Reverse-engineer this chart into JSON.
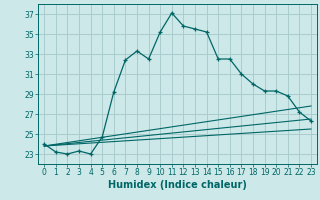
{
  "title": "",
  "xlabel": "Humidex (Indice chaleur)",
  "bg_color": "#cce8e8",
  "grid_color": "#aacccc",
  "line_color": "#006666",
  "xlim": [
    -0.5,
    23.5
  ],
  "ylim": [
    22,
    38
  ],
  "yticks": [
    23,
    25,
    27,
    29,
    31,
    33,
    35,
    37
  ],
  "xticks": [
    0,
    1,
    2,
    3,
    4,
    5,
    6,
    7,
    8,
    9,
    10,
    11,
    12,
    13,
    14,
    15,
    16,
    17,
    18,
    19,
    20,
    21,
    22,
    23
  ],
  "main_line": {
    "x": [
      0,
      1,
      2,
      3,
      4,
      5,
      6,
      7,
      8,
      9,
      10,
      11,
      12,
      13,
      14,
      15,
      16,
      17,
      18,
      19,
      20,
      21,
      22,
      23
    ],
    "y": [
      24.0,
      23.2,
      23.0,
      23.3,
      23.0,
      24.7,
      29.2,
      32.4,
      33.3,
      32.5,
      35.2,
      37.1,
      35.8,
      35.5,
      35.2,
      32.5,
      32.5,
      31.0,
      30.0,
      29.3,
      29.3,
      28.8,
      27.2,
      26.3
    ]
  },
  "linear_lines": [
    {
      "x": [
        0,
        23
      ],
      "y": [
        23.8,
        25.5
      ]
    },
    {
      "x": [
        0,
        23
      ],
      "y": [
        23.8,
        26.5
      ]
    },
    {
      "x": [
        0,
        23
      ],
      "y": [
        23.8,
        27.8
      ]
    }
  ],
  "xlabel_fontsize": 7,
  "tick_fontsize": 5.5
}
